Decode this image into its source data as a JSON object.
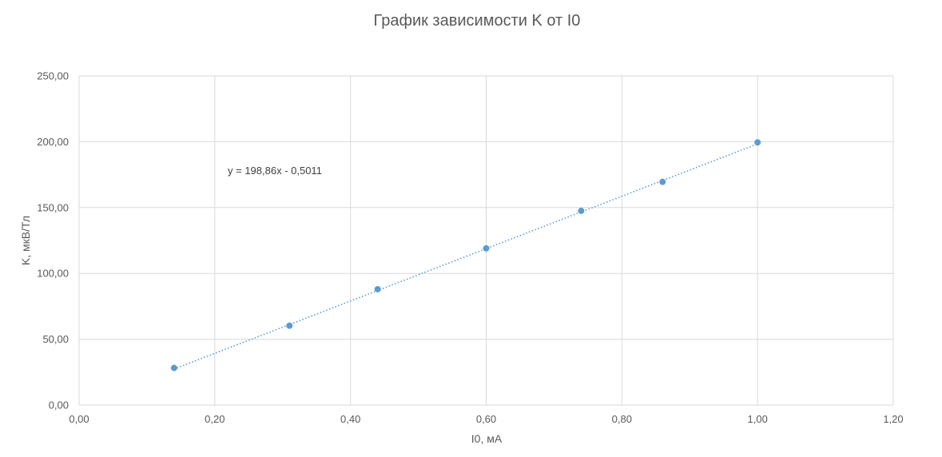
{
  "chart_data": {
    "type": "scatter",
    "title": "График зависимости K от I0",
    "xlabel": "I0, мА",
    "ylabel": "K, мкВ/Тл",
    "xlim": [
      0,
      1.2
    ],
    "ylim": [
      0,
      250
    ],
    "x_ticks": [
      "0,00",
      "0,20",
      "0,40",
      "0,60",
      "0,80",
      "1,00",
      "1,20"
    ],
    "y_ticks": [
      "0,00",
      "50,00",
      "100,00",
      "150,00",
      "200,00",
      "250,00"
    ],
    "x_tick_values": [
      0,
      0.2,
      0.4,
      0.6,
      0.8,
      1.0,
      1.2
    ],
    "y_tick_values": [
      0,
      50,
      100,
      150,
      200,
      250
    ],
    "grid": true,
    "series": [
      {
        "x": [
          0.14,
          0.31,
          0.44,
          0.6,
          0.74,
          0.86,
          1.0
        ],
        "y": [
          28.2,
          60.3,
          88.0,
          119.0,
          147.5,
          169.5,
          199.5
        ],
        "color": "#5b9bd5"
      }
    ],
    "trendline": {
      "type": "linear",
      "slope": 198.86,
      "intercept": -0.5011,
      "x_range": [
        0.14,
        1.0
      ],
      "equation": "y = 198,86x - 0,5011",
      "color": "#5b9bd5"
    }
  }
}
